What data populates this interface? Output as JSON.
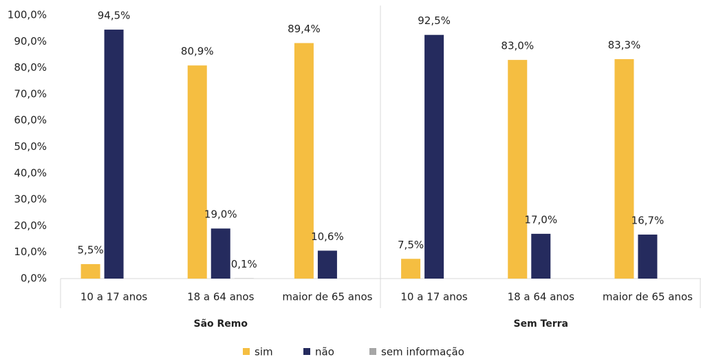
{
  "chart_data": {
    "type": "bar",
    "groups": [
      "São Remo",
      "Sem Terra"
    ],
    "categories": [
      "10 a 17 anos",
      "18 a 64 anos",
      "maior de 65 anos",
      "10 a 17 anos",
      "18 a 64 anos",
      "maior de 65 anos"
    ],
    "series": [
      {
        "name": "sim",
        "color": "#F5BE41",
        "values": [
          5.5,
          80.9,
          89.4,
          7.5,
          83.0,
          83.3
        ],
        "value_labels": [
          "5,5%",
          "80,9%",
          "89,4%",
          "7,5%",
          "83,0%",
          "83,3%"
        ]
      },
      {
        "name": "não",
        "color": "#252B5E",
        "values": [
          94.5,
          19.0,
          10.6,
          92.5,
          17.0,
          16.7
        ],
        "value_labels": [
          "94,5%",
          "19,0%",
          "10,6%",
          "92,5%",
          "17,0%",
          "16,7%"
        ]
      },
      {
        "name": "sem informação",
        "color": "#A6A6A6",
        "values": [
          null,
          0.1,
          null,
          null,
          null,
          null
        ],
        "value_labels": [
          null,
          "0,1%",
          null,
          null,
          null,
          null
        ]
      }
    ],
    "ylim": [
      0,
      100
    ],
    "yticks": [
      {
        "value": 0,
        "label": "0,0%"
      },
      {
        "value": 10,
        "label": "10,0%"
      },
      {
        "value": 20,
        "label": "20,0%"
      },
      {
        "value": 30,
        "label": "30,0%"
      },
      {
        "value": 40,
        "label": "40,0%"
      },
      {
        "value": 50,
        "label": "50,0%"
      },
      {
        "value": 60,
        "label": "60,0%"
      },
      {
        "value": 70,
        "label": "70,0%"
      },
      {
        "value": 80,
        "label": "80,0%"
      },
      {
        "value": 90,
        "label": "90,0%"
      },
      {
        "value": 100,
        "label": "100,0%"
      }
    ],
    "grid": false,
    "legend": "bottom"
  }
}
